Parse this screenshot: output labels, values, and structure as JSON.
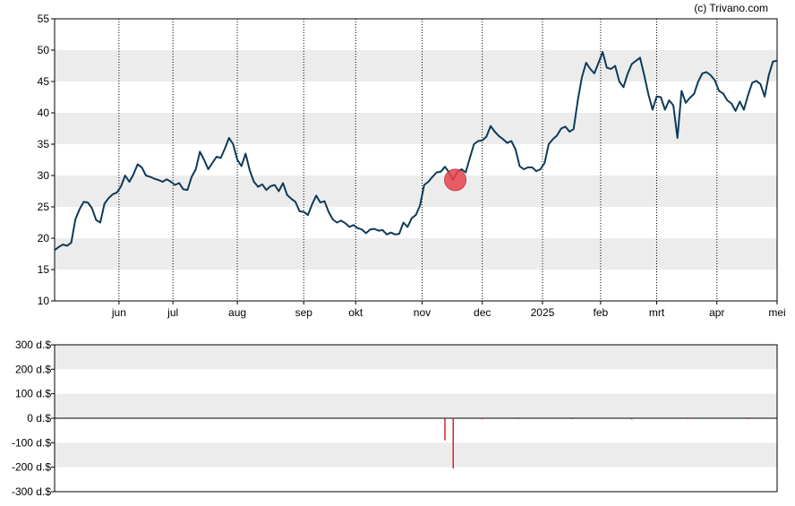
{
  "credit": "(c) Trivano.com",
  "colors": {
    "price_line": "#0d3b5a",
    "band_fill": "#ececec",
    "bar_color": "#d8232a",
    "marker_fill": "#e8454c",
    "marker_stroke": "#c0282f",
    "axis": "#000000"
  },
  "chart_data": [
    {
      "type": "line",
      "title": "",
      "xlabel": "",
      "ylabel": "",
      "ylim": [
        10,
        55
      ],
      "yticks": [
        "10",
        "15",
        "20",
        "25",
        "30",
        "35",
        "40",
        "45",
        "50",
        "55"
      ],
      "ytick_values": [
        10,
        15,
        20,
        25,
        30,
        35,
        40,
        45,
        50,
        55
      ],
      "xlim": [
        0,
        348
      ],
      "month_labels": [
        "jun",
        "jul",
        "aug",
        "sep",
        "okt",
        "nov",
        "dec",
        "2025",
        "feb",
        "mrt",
        "apr",
        "mei"
      ],
      "month_ticks": [
        31,
        57,
        88,
        120,
        145,
        177,
        206,
        235,
        263,
        290,
        319,
        348
      ],
      "grid": "vertical dotted lines at month starts; alternating horizontal bands",
      "highlight": {
        "x": 193,
        "y": 29.3
      },
      "series": [
        {
          "points": [
            [
              0,
              18.1
            ],
            [
              2,
              18.6
            ],
            [
              4,
              19.0
            ],
            [
              6,
              18.8
            ],
            [
              8,
              19.3
            ],
            [
              10,
              23.0
            ],
            [
              12,
              24.6
            ],
            [
              14,
              25.8
            ],
            [
              16,
              25.7
            ],
            [
              18,
              24.8
            ],
            [
              20,
              22.9
            ],
            [
              22,
              22.5
            ],
            [
              24,
              25.5
            ],
            [
              26,
              26.4
            ],
            [
              28,
              27.0
            ],
            [
              30,
              27.3
            ],
            [
              32,
              28.3
            ],
            [
              34,
              30.0
            ],
            [
              36,
              29.0
            ],
            [
              38,
              30.2
            ],
            [
              40,
              31.8
            ],
            [
              42,
              31.3
            ],
            [
              44,
              30.0
            ],
            [
              46,
              29.8
            ],
            [
              48,
              29.5
            ],
            [
              50,
              29.3
            ],
            [
              52,
              29.0
            ],
            [
              54,
              29.4
            ],
            [
              56,
              29.0
            ],
            [
              58,
              28.5
            ],
            [
              60,
              28.8
            ],
            [
              62,
              27.8
            ],
            [
              64,
              27.7
            ],
            [
              66,
              29.8
            ],
            [
              68,
              31.0
            ],
            [
              70,
              33.8
            ],
            [
              72,
              32.5
            ],
            [
              74,
              31.0
            ],
            [
              76,
              32.0
            ],
            [
              78,
              33.0
            ],
            [
              80,
              32.8
            ],
            [
              82,
              34.3
            ],
            [
              84,
              36.0
            ],
            [
              86,
              35.0
            ],
            [
              88,
              32.5
            ],
            [
              90,
              31.5
            ],
            [
              92,
              33.5
            ],
            [
              94,
              30.8
            ],
            [
              96,
              29.0
            ],
            [
              98,
              28.2
            ],
            [
              100,
              28.6
            ],
            [
              102,
              27.7
            ],
            [
              104,
              28.3
            ],
            [
              106,
              28.5
            ],
            [
              108,
              27.5
            ],
            [
              110,
              28.8
            ],
            [
              112,
              26.9
            ],
            [
              114,
              26.3
            ],
            [
              116,
              25.8
            ],
            [
              118,
              24.3
            ],
            [
              120,
              24.2
            ],
            [
              122,
              23.7
            ],
            [
              124,
              25.4
            ],
            [
              126,
              26.8
            ],
            [
              128,
              25.7
            ],
            [
              130,
              25.9
            ],
            [
              132,
              24.2
            ],
            [
              134,
              23.0
            ],
            [
              136,
              22.5
            ],
            [
              138,
              22.8
            ],
            [
              140,
              22.4
            ],
            [
              142,
              21.8
            ],
            [
              144,
              22.1
            ],
            [
              146,
              21.6
            ],
            [
              148,
              21.4
            ],
            [
              150,
              20.8
            ],
            [
              152,
              21.4
            ],
            [
              154,
              21.5
            ],
            [
              156,
              21.2
            ],
            [
              158,
              21.3
            ],
            [
              160,
              20.6
            ],
            [
              162,
              20.9
            ],
            [
              164,
              20.6
            ],
            [
              166,
              20.7
            ],
            [
              168,
              22.5
            ],
            [
              170,
              21.8
            ],
            [
              172,
              23.2
            ],
            [
              174,
              23.7
            ],
            [
              176,
              25.2
            ],
            [
              178,
              28.5
            ],
            [
              180,
              29.0
            ],
            [
              182,
              29.8
            ],
            [
              184,
              30.5
            ],
            [
              186,
              30.6
            ],
            [
              188,
              31.4
            ],
            [
              190,
              30.5
            ],
            [
              192,
              29.3
            ],
            [
              194,
              30.6
            ],
            [
              196,
              31.0
            ],
            [
              198,
              30.5
            ],
            [
              200,
              32.8
            ],
            [
              202,
              35.0
            ],
            [
              204,
              35.5
            ],
            [
              206,
              35.6
            ],
            [
              208,
              36.2
            ],
            [
              210,
              37.9
            ],
            [
              212,
              37.0
            ],
            [
              214,
              36.3
            ],
            [
              216,
              35.8
            ],
            [
              218,
              35.2
            ],
            [
              220,
              35.5
            ],
            [
              222,
              34.2
            ],
            [
              224,
              31.5
            ],
            [
              226,
              31.0
            ],
            [
              228,
              31.3
            ],
            [
              230,
              31.3
            ],
            [
              232,
              30.7
            ],
            [
              234,
              31.0
            ],
            [
              236,
              32.0
            ],
            [
              238,
              35.0
            ],
            [
              240,
              35.8
            ],
            [
              242,
              36.4
            ],
            [
              244,
              37.5
            ],
            [
              246,
              37.8
            ],
            [
              248,
              37.0
            ],
            [
              250,
              37.4
            ],
            [
              252,
              42.0
            ],
            [
              254,
              45.7
            ],
            [
              256,
              48.0
            ],
            [
              258,
              47.0
            ],
            [
              260,
              46.3
            ],
            [
              262,
              48.0
            ],
            [
              264,
              49.7
            ],
            [
              266,
              47.2
            ],
            [
              268,
              47.0
            ],
            [
              270,
              47.5
            ],
            [
              272,
              45.0
            ],
            [
              274,
              44.1
            ],
            [
              276,
              46.2
            ],
            [
              278,
              47.8
            ],
            [
              280,
              48.3
            ],
            [
              282,
              48.8
            ],
            [
              284,
              46.0
            ],
            [
              286,
              43.0
            ],
            [
              288,
              40.5
            ],
            [
              290,
              42.6
            ],
            [
              292,
              42.5
            ],
            [
              294,
              40.5
            ],
            [
              296,
              42.0
            ],
            [
              298,
              41.2
            ],
            [
              300,
              36.0
            ],
            [
              302,
              43.5
            ],
            [
              304,
              41.6
            ],
            [
              306,
              42.4
            ],
            [
              308,
              43.0
            ],
            [
              310,
              45.0
            ],
            [
              312,
              46.3
            ],
            [
              314,
              46.5
            ],
            [
              316,
              46.0
            ],
            [
              318,
              45.2
            ],
            [
              320,
              43.5
            ],
            [
              322,
              43.1
            ],
            [
              324,
              42.0
            ],
            [
              326,
              41.5
            ],
            [
              328,
              40.3
            ],
            [
              330,
              41.8
            ],
            [
              332,
              40.5
            ],
            [
              334,
              42.8
            ],
            [
              336,
              44.8
            ],
            [
              338,
              45.1
            ],
            [
              340,
              44.6
            ],
            [
              342,
              42.6
            ],
            [
              344,
              46.0
            ],
            [
              346,
              48.2
            ],
            [
              348,
              48.3
            ]
          ]
        }
      ]
    },
    {
      "type": "bar",
      "title": "",
      "xlabel": "",
      "ylabel": "",
      "ylim": [
        -300,
        300
      ],
      "yticks": [
        "300 d.$",
        "200 d.$",
        "100 d.$",
        "0 d.$",
        "-100 d.$",
        "-200 d.$",
        "-300 d.$"
      ],
      "ytick_values": [
        300,
        200,
        100,
        0,
        -100,
        -200,
        -300
      ],
      "xlim": [
        0,
        348
      ],
      "series": [
        {
          "points": [
            [
              188,
              -90
            ],
            [
              192,
              -205
            ],
            [
              206,
              -4
            ],
            [
              223,
              -3
            ],
            [
              249,
              -3
            ],
            [
              278,
              -5
            ],
            [
              305,
              -3
            ],
            [
              334,
              -3
            ]
          ]
        }
      ]
    }
  ]
}
